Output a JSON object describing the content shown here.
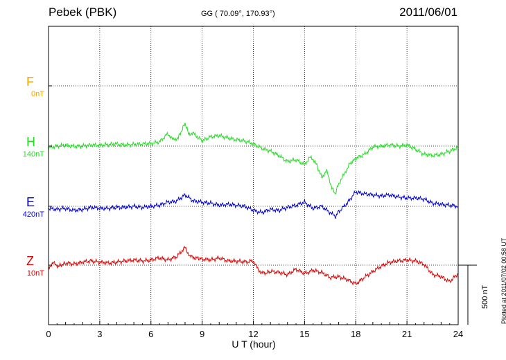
{
  "header": {
    "station": "Pebek (PBK)",
    "coords": "GG ( 70.09°, 170.93°)",
    "date": "2011/06/01"
  },
  "plotted_note": "Plotted at 2011/07/02 00:58 UT",
  "scale_bar": {
    "label": "500 nT",
    "value_nT": 500
  },
  "chart_data": {
    "type": "line",
    "xlabel": "U T (hour)",
    "xlim": [
      0,
      24
    ],
    "xticks": [
      "0",
      "3",
      "6",
      "9",
      "12",
      "15",
      "18",
      "21",
      "24"
    ],
    "grid": true,
    "series": [
      {
        "name": "F",
        "offset": "0nT",
        "color": "#f5a200",
        "x": [],
        "y": []
      },
      {
        "name": "H",
        "offset": "140nT",
        "color": "#22dd22",
        "x": [
          0,
          0.5,
          1,
          1.5,
          2,
          2.5,
          3,
          3.5,
          4,
          4.5,
          5,
          5.5,
          6,
          6.5,
          7,
          7.3,
          7.6,
          8,
          8.2,
          8.5,
          8.8,
          9,
          9.5,
          10,
          10.5,
          11,
          11.5,
          12,
          12.5,
          13,
          13.5,
          14,
          14.5,
          15,
          15.3,
          15.6,
          16,
          16.3,
          16.6,
          16.8,
          17,
          17.3,
          17.6,
          18,
          18.5,
          19,
          19.5,
          20,
          20.5,
          21,
          21.5,
          22,
          22.5,
          23,
          23.5,
          24
        ],
        "y": [
          -10,
          0,
          5,
          -2,
          0,
          5,
          3,
          8,
          10,
          5,
          8,
          10,
          12,
          20,
          60,
          30,
          40,
          110,
          60,
          60,
          40,
          25,
          45,
          50,
          40,
          30,
          25,
          10,
          -10,
          -25,
          -45,
          -75,
          -65,
          -90,
          -55,
          -70,
          -150,
          -120,
          -200,
          -230,
          -180,
          -140,
          -90,
          -60,
          -40,
          -5,
          0,
          5,
          0,
          5,
          -15,
          -40,
          -45,
          -40,
          -25,
          -5
        ]
      },
      {
        "name": "E",
        "offset": "420nT",
        "color": "#0000cc",
        "x": [
          0,
          0.5,
          1,
          1.5,
          2,
          2.5,
          3,
          3.5,
          4,
          4.5,
          5,
          5.5,
          6,
          6.5,
          7,
          7.5,
          8,
          8.5,
          9,
          9.5,
          10,
          10.5,
          11,
          11.5,
          12,
          12.5,
          13,
          13.5,
          14,
          14.5,
          15,
          15.5,
          16,
          16.5,
          16.8,
          17,
          17.5,
          18,
          18.5,
          19,
          19.5,
          20,
          20.5,
          21,
          21.5,
          22,
          22.5,
          23,
          23.5,
          24
        ],
        "y": [
          -10,
          -15,
          -10,
          -20,
          -15,
          -5,
          -10,
          -10,
          -5,
          -5,
          0,
          -5,
          0,
          5,
          20,
          25,
          55,
          25,
          20,
          15,
          5,
          10,
          5,
          0,
          -20,
          -30,
          -15,
          -20,
          -5,
          5,
          20,
          -10,
          0,
          -30,
          -50,
          -25,
          15,
          70,
          60,
          55,
          50,
          55,
          45,
          40,
          40,
          35,
          15,
          10,
          5,
          0
        ]
      },
      {
        "name": "Z",
        "offset": "10nT",
        "color": "#dd0000",
        "x": [
          0,
          0.3,
          0.6,
          1,
          1.5,
          2,
          2.5,
          3,
          3.5,
          4,
          4.5,
          5,
          5.5,
          6,
          6.5,
          7,
          7.5,
          8,
          8.3,
          8.6,
          9,
          9.5,
          10,
          10.5,
          11,
          11.5,
          12,
          12.3,
          12.6,
          13,
          13.5,
          14,
          14.5,
          15,
          15.5,
          16,
          16.5,
          17,
          17.5,
          18,
          18.5,
          19,
          19.5,
          20,
          20.5,
          21,
          21.5,
          22,
          22.5,
          23,
          23.5,
          24
        ],
        "y": [
          -10,
          10,
          -5,
          10,
          5,
          15,
          20,
          15,
          10,
          15,
          20,
          25,
          20,
          25,
          35,
          25,
          40,
          85,
          40,
          35,
          30,
          25,
          35,
          20,
          20,
          15,
          20,
          -25,
          -40,
          -30,
          -35,
          -45,
          -20,
          -40,
          -25,
          -35,
          -60,
          -55,
          -70,
          -90,
          -60,
          -30,
          -5,
          15,
          20,
          25,
          20,
          5,
          -45,
          -55,
          -80,
          -40
        ]
      }
    ]
  }
}
